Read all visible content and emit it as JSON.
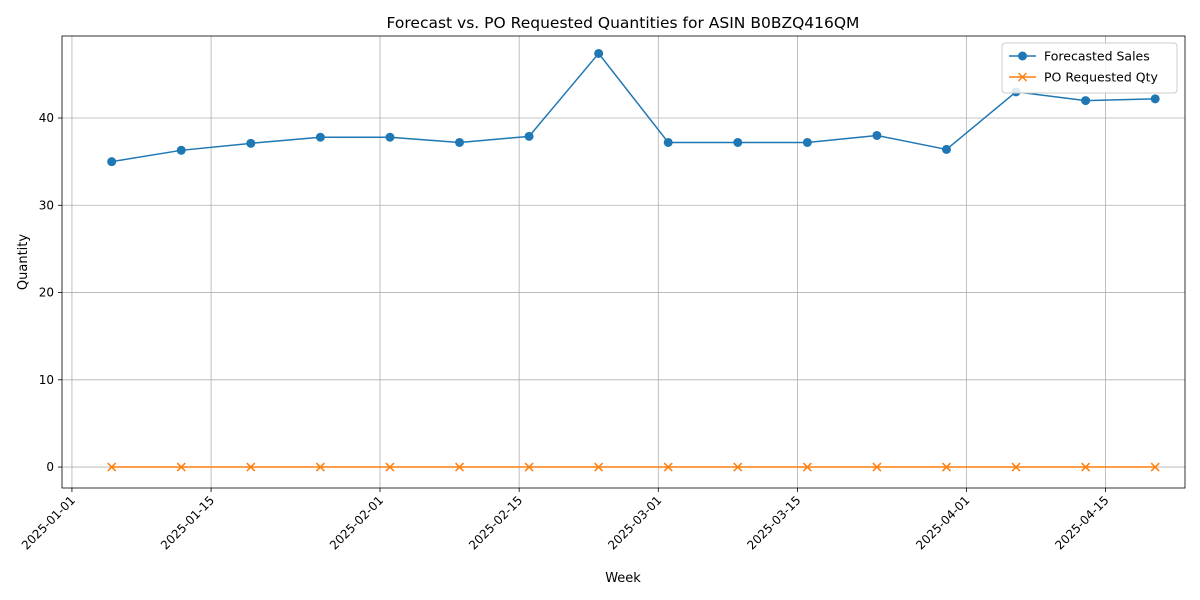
{
  "chart_data": {
    "type": "line",
    "title": "Forecast vs. PO Requested Quantities for ASIN B0BZQ416QM",
    "xlabel": "Week",
    "ylabel": "Quantity",
    "x_tick_labels": [
      "2025-01-01",
      "2025-01-15",
      "2025-02-01",
      "2025-02-15",
      "2025-03-01",
      "2025-03-15",
      "2025-04-01",
      "2025-04-15"
    ],
    "y_tick_labels": [
      "0",
      "10",
      "20",
      "30",
      "40"
    ],
    "y_ticks": [
      0,
      10,
      20,
      30,
      40
    ],
    "xlim": [
      "2024-12-31",
      "2025-04-23"
    ],
    "ylim": [
      -2.4,
      49.4
    ],
    "grid": true,
    "legend_position": "top-right",
    "x": [
      "2025-01-05",
      "2025-01-12",
      "2025-01-19",
      "2025-01-26",
      "2025-02-02",
      "2025-02-09",
      "2025-02-16",
      "2025-02-23",
      "2025-03-02",
      "2025-03-09",
      "2025-03-16",
      "2025-03-23",
      "2025-03-30",
      "2025-04-06",
      "2025-04-13",
      "2025-04-20"
    ],
    "series": [
      {
        "name": "Forecasted Sales",
        "color": "#1f77b4",
        "marker": "circle",
        "values": [
          35.0,
          36.3,
          37.1,
          37.8,
          37.8,
          37.2,
          37.9,
          47.4,
          37.2,
          37.2,
          37.2,
          38.0,
          36.4,
          43.0,
          42.0,
          42.2
        ]
      },
      {
        "name": "PO Requested Qty",
        "color": "#ff7f0e",
        "marker": "x",
        "values": [
          0,
          0,
          0,
          0,
          0,
          0,
          0,
          0,
          0,
          0,
          0,
          0,
          0,
          0,
          0,
          0
        ]
      }
    ]
  }
}
